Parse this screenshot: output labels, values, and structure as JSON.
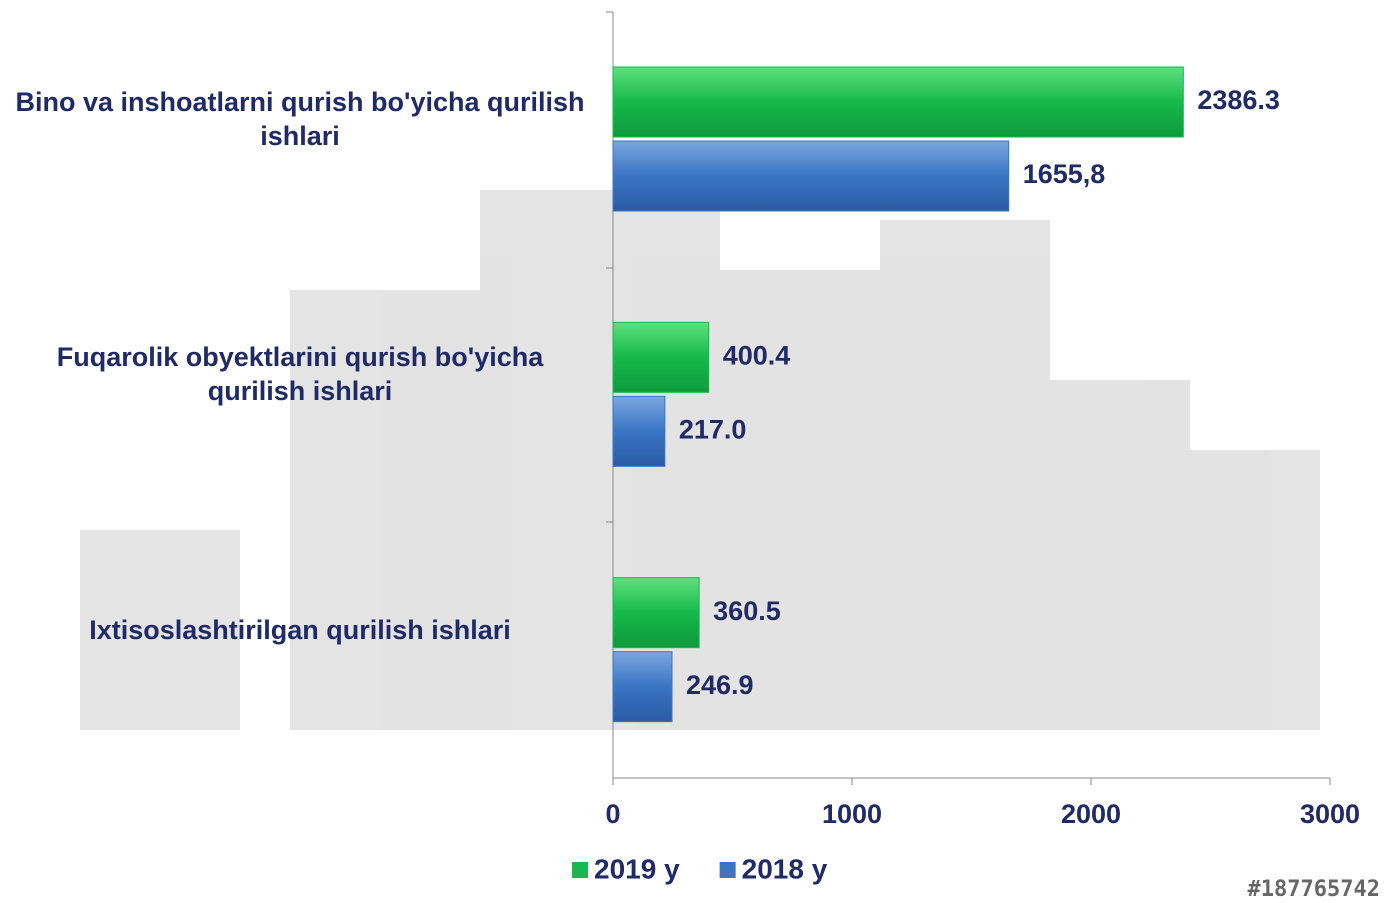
{
  "chart_data": {
    "type": "bar",
    "orientation": "horizontal",
    "categories": [
      "Bino va inshoatlarni qurish bo'yicha qurilish ishlari",
      "Fuqarolik obyektlarini qurish bo'yicha qurilish ishlari",
      "Ixtisoslashtirilgan qurilish ishlari"
    ],
    "series": [
      {
        "name": "2019 y",
        "color": "#16b94b",
        "values": [
          2386.3,
          400.4,
          360.5
        ]
      },
      {
        "name": "2018 y",
        "color": "#3a75c4",
        "values": [
          1655.8,
          217.0,
          246.9
        ],
        "value_labels": [
          "1655,8",
          "217.0",
          "246.9"
        ]
      }
    ],
    "xlim": [
      0,
      3000
    ],
    "xticks": [
      0,
      1000,
      2000,
      3000
    ],
    "legend": "bottom",
    "watermark": "#187765742"
  }
}
